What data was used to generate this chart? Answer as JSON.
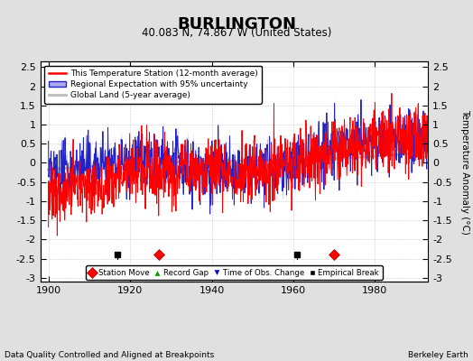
{
  "title": "BURLINGTON",
  "subtitle": "40.083 N, 74.867 W (United States)",
  "ylabel": "Temperature Anomaly (°C)",
  "footer_left": "Data Quality Controlled and Aligned at Breakpoints",
  "footer_right": "Berkeley Earth",
  "xlim": [
    1898,
    1993
  ],
  "ylim": [
    -3.1,
    2.65
  ],
  "yticks": [
    -3,
    -2.5,
    -2,
    -1.5,
    -1,
    -0.5,
    0,
    0.5,
    1,
    1.5,
    2,
    2.5
  ],
  "xticks": [
    1900,
    1920,
    1940,
    1960,
    1980
  ],
  "bg_color": "#e0e0e0",
  "plot_bg_color": "#ffffff",
  "station_moves": [
    1927,
    1970
  ],
  "empirical_breaks": [
    1917,
    1961
  ],
  "station_color": "#ff0000",
  "regional_color": "#2222cc",
  "regional_fill_color": "#aaaaee",
  "global_color": "#bbbbbb",
  "marker_y": -2.4,
  "seed": 42
}
